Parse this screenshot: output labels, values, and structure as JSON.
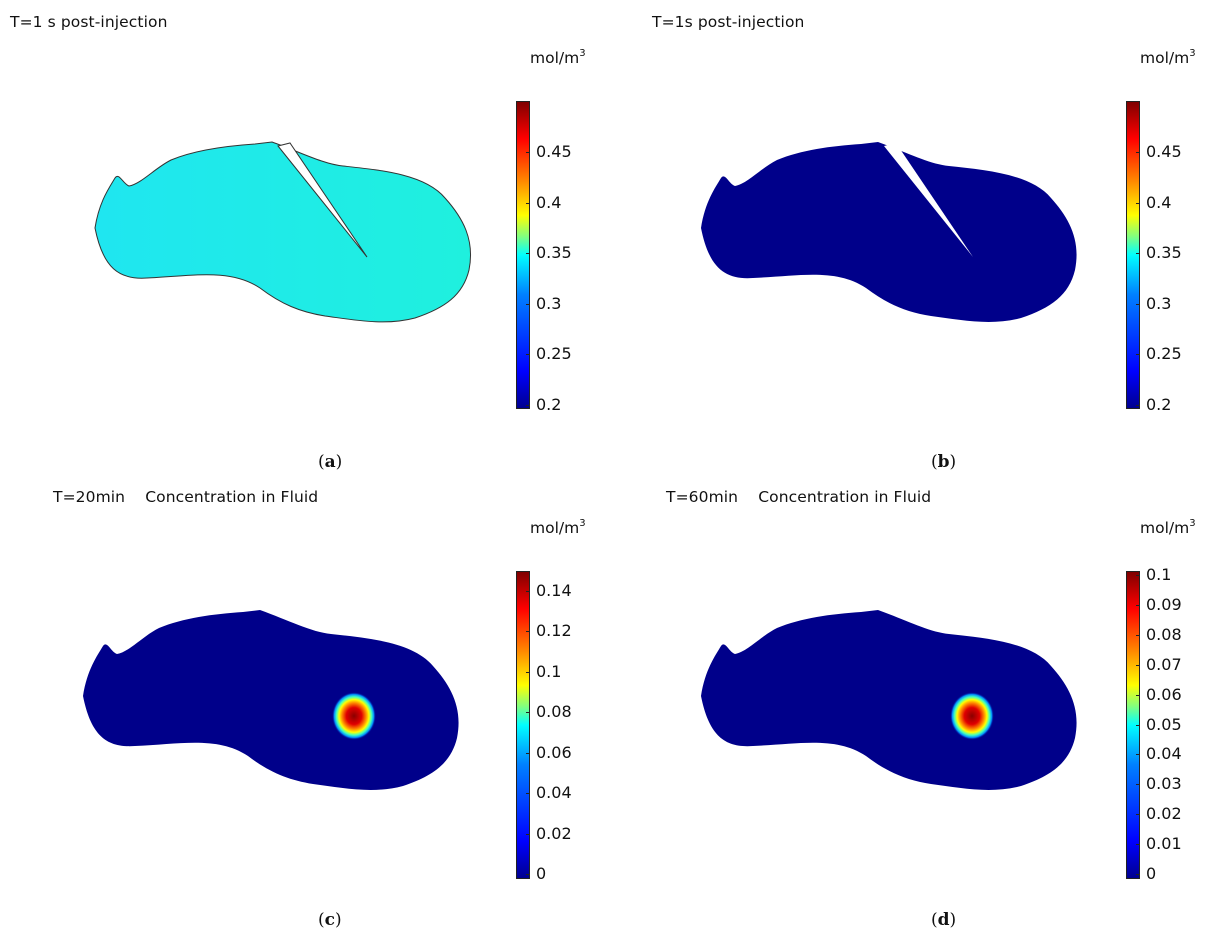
{
  "unit_label": "mol/m",
  "unit_exponent": "3",
  "panels": [
    {
      "id": "a",
      "title": "T=1 s post-injection",
      "caption_open": "(",
      "caption_letter": "a",
      "caption_close": ")",
      "fill": "#1fe6f0",
      "show_needle": true,
      "outline": true,
      "hotspot": false,
      "ticks": [
        "0.45",
        "0.4",
        "0.35",
        "0.3",
        "0.25",
        "0.2"
      ]
    },
    {
      "id": "b",
      "title": "T=1s post-injection",
      "caption_open": "(",
      "caption_letter": "b",
      "caption_close": ")",
      "fill": "#00008a",
      "show_needle": true,
      "outline": false,
      "hotspot": false,
      "ticks": [
        "0.45",
        "0.4",
        "0.35",
        "0.3",
        "0.25",
        "0.2"
      ]
    },
    {
      "id": "c",
      "title": "T=20min    Concentration in Fluid",
      "caption_open": "(",
      "caption_letter": "c",
      "caption_close": ")",
      "fill": "#00008a",
      "show_needle": false,
      "outline": false,
      "hotspot": true,
      "ticks": [
        "0.14",
        "0.12",
        "0.1",
        "0.08",
        "0.06",
        "0.04",
        "0.02",
        "0"
      ]
    },
    {
      "id": "d",
      "title": "T=60min    Concentration in Fluid",
      "caption_open": "(",
      "caption_letter": "d",
      "caption_close": ")",
      "fill": "#00008a",
      "show_needle": false,
      "outline": false,
      "hotspot": true,
      "ticks": [
        "0.1",
        "0.09",
        "0.08",
        "0.07",
        "0.06",
        "0.05",
        "0.04",
        "0.03",
        "0.02",
        "0.01",
        "0"
      ]
    }
  ]
}
